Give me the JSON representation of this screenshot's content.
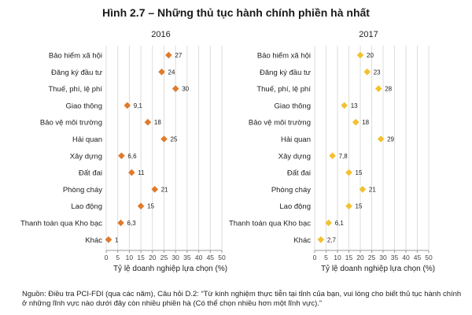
{
  "figure_title": "Hình 2.7 – Những thủ tục hành chính phiền hà nhất",
  "source_note": "Nguồn: Điều tra PCI-FDI (qua các năm), Câu hỏi D.2: “Từ kinh nghiệm thực tiễn tại tỉnh của bạn, vui lòng cho biết thủ tục hành chính ở những lĩnh vực nào dưới đây còn nhiều phiền hà (Có thể chọn nhiều hơn một lĩnh vực).”",
  "colors": {
    "2016": "#e07a2a",
    "2017": "#f2c12e",
    "grid": "#dddddd",
    "axis": "#999999"
  },
  "chart_data": [
    {
      "type": "scatter",
      "title": "2016",
      "xlabel": "Tỷ lệ doanh nghiệp lựa chọn (%)",
      "xlim": [
        0,
        50
      ],
      "xticks": [
        "0",
        "5",
        "10",
        "15",
        "20",
        "25",
        "30",
        "35",
        "40",
        "45",
        "50"
      ],
      "grid": true,
      "marker": "diamond",
      "categories": [
        "Bảo hiểm xã hội",
        "Đăng ký đầu tư",
        "Thuế, phí, lệ phí",
        "Giao thông",
        "Bảo vệ môi trường",
        "Hải quan",
        "Xây dựng",
        "Đất đai",
        "Phòng cháy",
        "Lao động",
        "Thanh toán qua Kho bạc",
        "Khác"
      ],
      "values": [
        27,
        24,
        30,
        9.1,
        18,
        25,
        6.6,
        11,
        21,
        15,
        6.3,
        1
      ],
      "value_labels": [
        "27",
        "24",
        "30",
        "9,1",
        "18",
        "25",
        "6,6",
        "11",
        "21",
        "15",
        "6,3",
        "1"
      ]
    },
    {
      "type": "scatter",
      "title": "2017",
      "xlabel": "Tỷ lệ doanh nghiệp lựa chọn (%)",
      "xlim": [
        0,
        50
      ],
      "xticks": [
        "0",
        "5",
        "10",
        "15",
        "20",
        "25",
        "30",
        "35",
        "40",
        "45",
        "50"
      ],
      "grid": true,
      "marker": "diamond",
      "categories": [
        "Bảo hiểm xã hội",
        "Đăng ký đầu tư",
        "Thuế, phí, lệ phí",
        "Giao thông",
        "Bảo vệ môi trường",
        "Hải quan",
        "Xây dựng",
        "Đất đai",
        "Phòng cháy",
        "Lao động",
        "Thanh toán qua Kho bạc",
        "Khác"
      ],
      "values": [
        20,
        23,
        28,
        13,
        18,
        29,
        7.8,
        15,
        21,
        15,
        6.1,
        2.7
      ],
      "value_labels": [
        "20",
        "23",
        "28",
        "13",
        "18",
        "29",
        "7,8",
        "15",
        "21",
        "15",
        "6,1",
        "2,7"
      ]
    }
  ]
}
